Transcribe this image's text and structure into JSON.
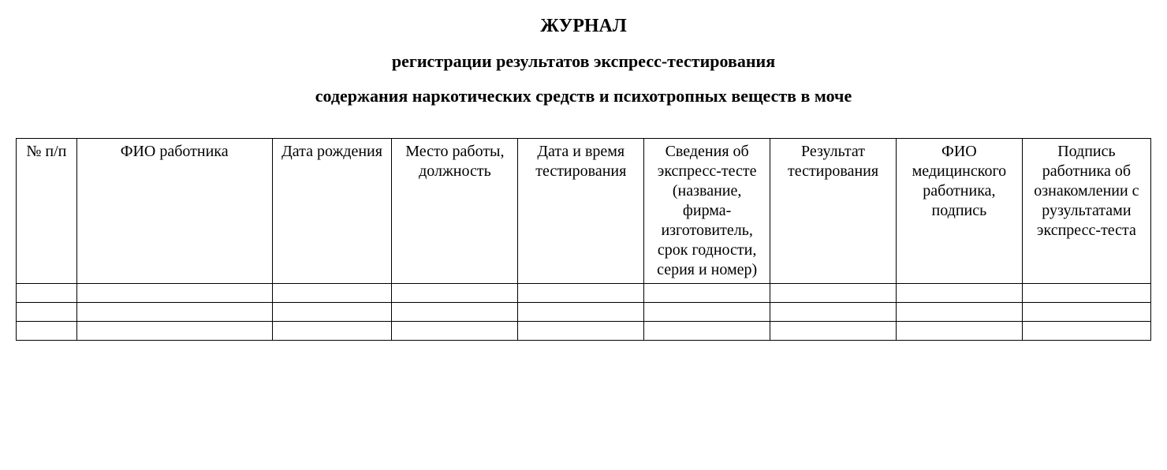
{
  "title": {
    "line1": "ЖУРНАЛ",
    "line2": "регистрации результатов экспресс-тестирования",
    "line3": "содержания наркотических средств и психотропных веществ в моче"
  },
  "table": {
    "columns": [
      "№ п/п",
      "ФИО работника",
      "Дата рождения",
      "Место работы, должность",
      "Дата и время тестирования",
      "Сведения об экспресс-тесте (название, фирма-изготовитель, срок годности, серия и номер)",
      "Результат тестирования",
      "ФИО медицинского работника, подпись",
      "Подпись работника об ознакомлении с рузультатами экспресс-теста"
    ],
    "column_widths_pct": [
      4.8,
      15.5,
      9.5,
      10,
      10,
      10,
      10,
      10,
      10.2
    ],
    "header_fontsize_pt": 15,
    "title_fontsize_pt": 18,
    "border_color": "#000000",
    "background_color": "#ffffff",
    "text_color": "#000000",
    "empty_rows": 3,
    "rows": [
      [
        "",
        "",
        "",
        "",
        "",
        "",
        "",
        "",
        ""
      ],
      [
        "",
        "",
        "",
        "",
        "",
        "",
        "",
        "",
        ""
      ],
      [
        "",
        "",
        "",
        "",
        "",
        "",
        "",
        "",
        ""
      ]
    ]
  }
}
